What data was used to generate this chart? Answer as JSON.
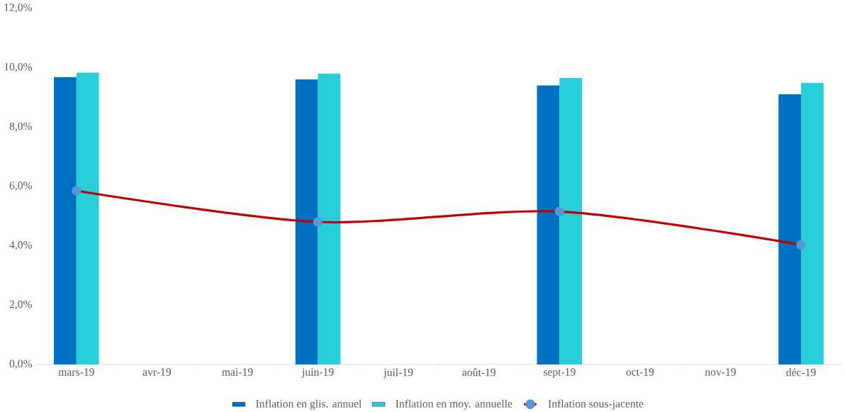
{
  "chart_data": {
    "type": "bar",
    "categories": [
      "mars-19",
      "avr-19",
      "mai-19",
      "juin-19",
      "juil-19",
      "août-19",
      "sept-19",
      "oct-19",
      "nov-19",
      "déc-19"
    ],
    "series": [
      {
        "name": "Inflation en glis. annuel",
        "color": "#0070c0",
        "values": [
          9.68,
          null,
          null,
          9.6,
          null,
          null,
          9.4,
          null,
          null,
          9.1
        ]
      },
      {
        "name": "Inflation en moy. annuelle",
        "color": "#29cfd8",
        "values": [
          9.83,
          null,
          null,
          9.8,
          null,
          null,
          9.65,
          null,
          null,
          9.48
        ]
      },
      {
        "name": "Inflation sous-jacente",
        "type": "line",
        "color": "#c00000",
        "marker": "circle",
        "values": [
          5.85,
          null,
          null,
          4.8,
          null,
          null,
          5.15,
          null,
          null,
          4.03
        ]
      }
    ],
    "ylim": [
      0,
      12
    ],
    "yticks": [
      {
        "value": 0,
        "label": "0,0%"
      },
      {
        "value": 2,
        "label": "2,0%"
      },
      {
        "value": 4,
        "label": "4,0%"
      },
      {
        "value": 6,
        "label": "6,0%"
      },
      {
        "value": 8,
        "label": "8,0%"
      },
      {
        "value": 10,
        "label": "10,0%"
      },
      {
        "value": 12,
        "label": "12,0%"
      }
    ],
    "legend": "bottom"
  }
}
